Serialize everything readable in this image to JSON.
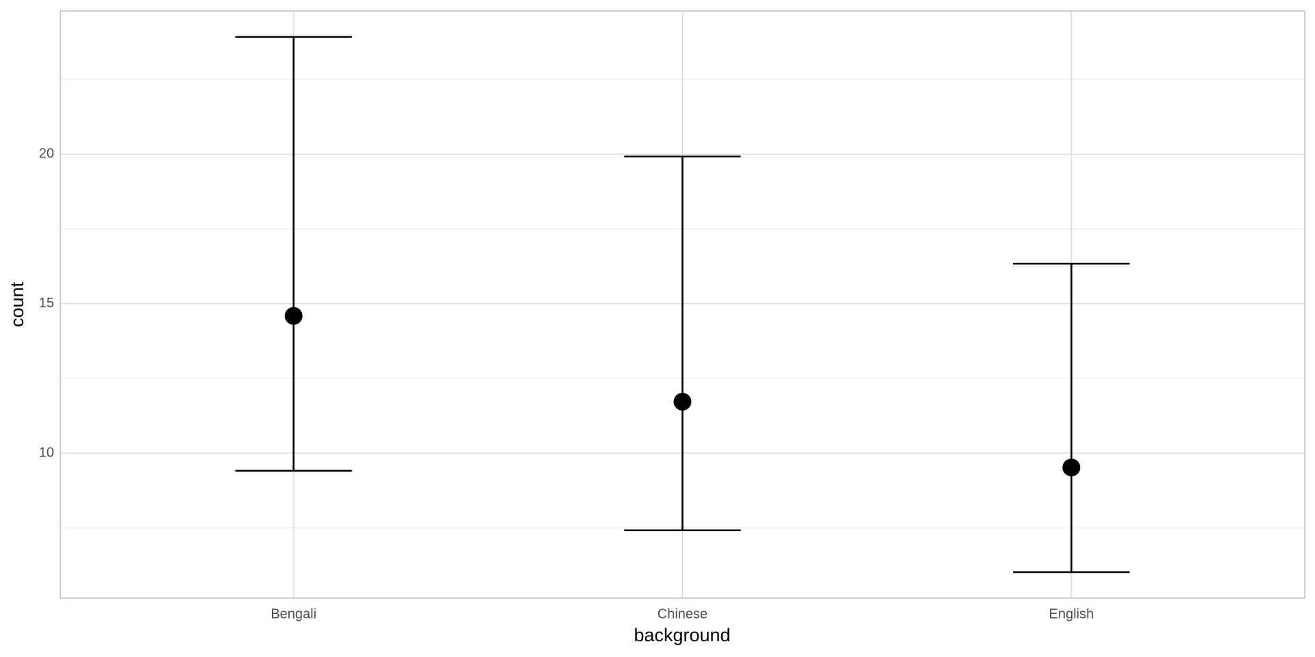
{
  "chart_data": {
    "type": "errorbar",
    "x_label": "background",
    "y_label": "count",
    "categories": [
      "Bengali",
      "Chinese",
      "English"
    ],
    "series": [
      {
        "color": "#000000",
        "values": [
          14.59,
          11.72,
          9.52
        ],
        "lower": [
          9.41,
          7.42,
          6.02
        ],
        "upper": [
          23.92,
          19.92,
          16.34
        ]
      }
    ],
    "ylim": [
      5.15,
      24.79
    ],
    "yticks": [
      10,
      15,
      20
    ],
    "minor_yticks": [
      7.5,
      12.5,
      17.5,
      22.5
    ],
    "grid": true
  }
}
